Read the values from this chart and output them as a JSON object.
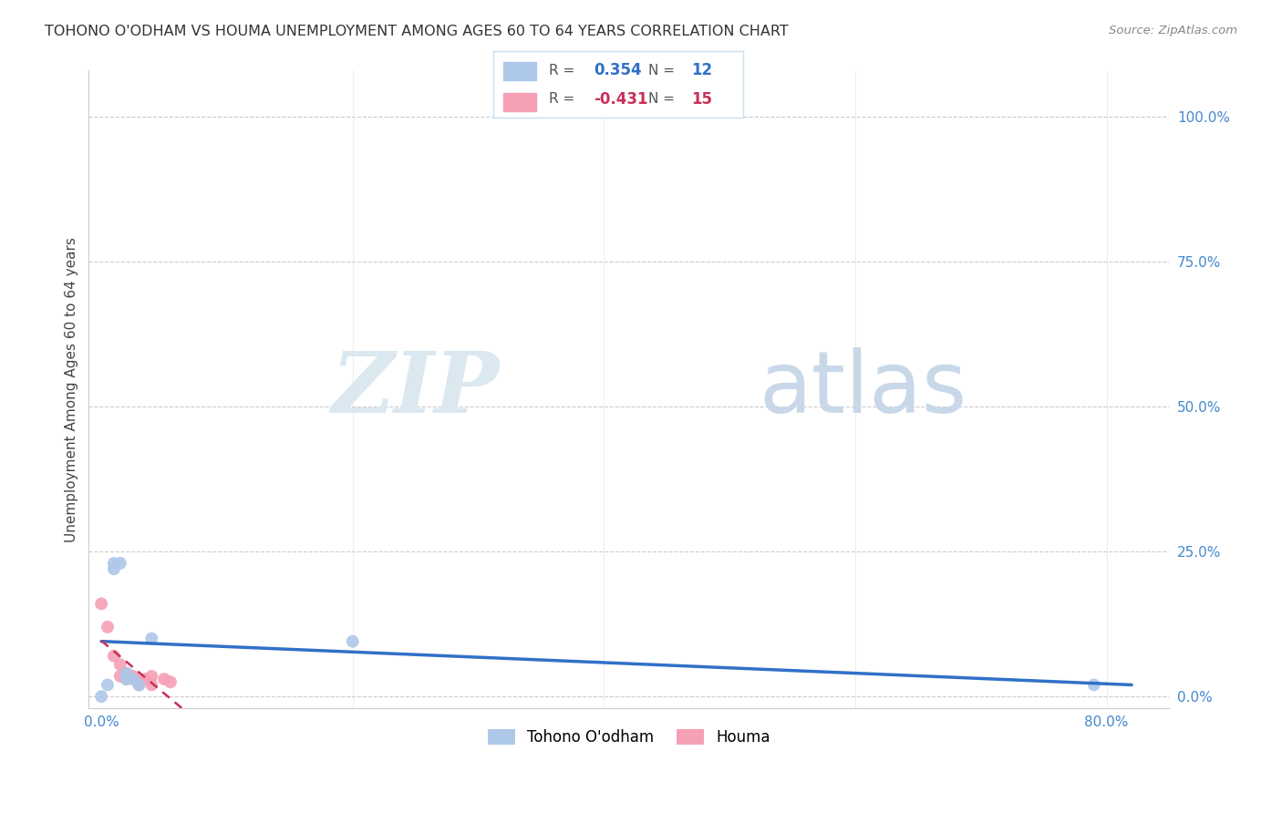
{
  "title": "TOHONO O'ODHAM VS HOUMA UNEMPLOYMENT AMONG AGES 60 TO 64 YEARS CORRELATION CHART",
  "source": "Source: ZipAtlas.com",
  "ylabel": "Unemployment Among Ages 60 to 64 years",
  "xlim": [
    -0.01,
    0.85
  ],
  "ylim": [
    -0.02,
    1.08
  ],
  "x_ticks": [
    0.0,
    0.2,
    0.4,
    0.6,
    0.8
  ],
  "x_tick_labels": [
    "0.0%",
    "",
    "",
    "",
    "80.0%"
  ],
  "y_ticks": [
    0.0,
    0.25,
    0.5,
    0.75,
    1.0
  ],
  "y_tick_labels": [
    "0.0%",
    "25.0%",
    "50.0%",
    "75.0%",
    "100.0%"
  ],
  "tohono_x": [
    0.0,
    0.005,
    0.01,
    0.01,
    0.015,
    0.02,
    0.02,
    0.025,
    0.03,
    0.04,
    0.2,
    0.79
  ],
  "tohono_y": [
    0.0,
    0.02,
    0.22,
    0.23,
    0.23,
    0.03,
    0.04,
    0.03,
    0.02,
    0.1,
    0.095,
    0.02
  ],
  "houma_x": [
    0.0,
    0.005,
    0.01,
    0.015,
    0.015,
    0.02,
    0.02,
    0.025,
    0.03,
    0.03,
    0.035,
    0.04,
    0.04,
    0.05,
    0.055
  ],
  "houma_y": [
    0.16,
    0.12,
    0.07,
    0.055,
    0.035,
    0.04,
    0.03,
    0.035,
    0.03,
    0.02,
    0.03,
    0.035,
    0.02,
    0.03,
    0.025
  ],
  "tohono_color": "#adc8e8",
  "houma_color": "#f5a0b5",
  "tohono_line_color": "#3070c8",
  "houma_line_color": "#c83058",
  "tohono_R": 0.354,
  "tohono_N": 12,
  "houma_R": -0.431,
  "houma_N": 15,
  "marker_size": 100,
  "background_color": "#ffffff",
  "grid_color": "#cccccc",
  "watermark_zip": "ZIP",
  "watermark_atlas": "atlas",
  "watermark_color": "#dce8f0",
  "tick_color": "#4488cc",
  "title_fontsize": 11.5,
  "axis_label_fontsize": 11,
  "tick_fontsize": 11,
  "legend_box_color": "#c8dff0",
  "legend_text_color": "#555555"
}
